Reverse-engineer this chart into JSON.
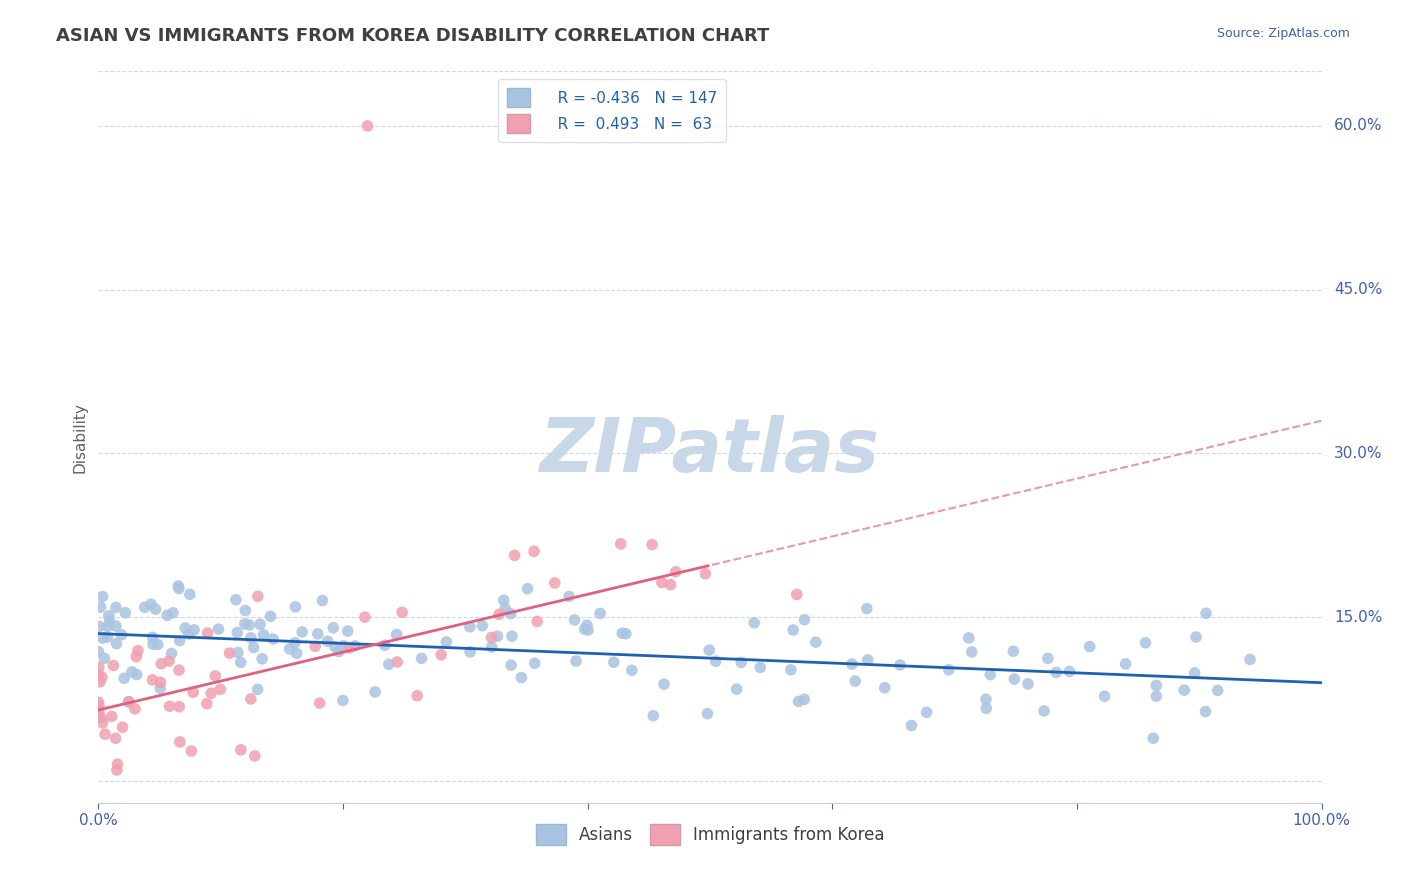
{
  "title": "ASIAN VS IMMIGRANTS FROM KOREA DISABILITY CORRELATION CHART",
  "source": "Source: ZipAtlas.com",
  "ylabel": "Disability",
  "xlim": [
    0,
    1.0
  ],
  "ylim": [
    -0.02,
    0.65
  ],
  "yticks": [
    0.0,
    0.15,
    0.3,
    0.45,
    0.6
  ],
  "yticklabels": [
    "",
    "15.0%",
    "30.0%",
    "45.0%",
    "60.0%"
  ],
  "blue_R": -0.436,
  "blue_N": 147,
  "pink_R": 0.493,
  "pink_N": 63,
  "blue_color": "#a8c4e0",
  "pink_color": "#f0a0b0",
  "blue_line_color": "#2060b0",
  "pink_line_color": "#e06080",
  "watermark": "ZIPatlas",
  "watermark_color": "#c8d8e8",
  "grid_color": "#d0d8e8",
  "title_color": "#404040",
  "axis_label_color": "#4060b0",
  "tick_color": "#4060b0",
  "legend_R_color": "#2060b0",
  "background_color": "#ffffff",
  "blue_intercept": 0.135,
  "blue_slope": -0.045,
  "pink_intercept": 0.065,
  "pink_slope": 0.265
}
